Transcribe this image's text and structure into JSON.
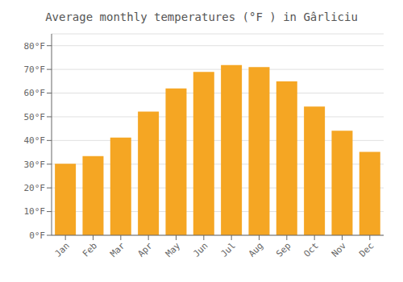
{
  "chart_data": {
    "type": "bar",
    "title": "Average monthly temperatures (°F ) in Gârliciu",
    "categories": [
      "Jan",
      "Feb",
      "Mar",
      "Apr",
      "May",
      "Jun",
      "Jul",
      "Aug",
      "Sep",
      "Oct",
      "Nov",
      "Dec"
    ],
    "values": [
      30.2,
      33.4,
      41.2,
      52.2,
      62.0,
      68.9,
      71.8,
      71.0,
      64.9,
      54.3,
      44.1,
      35.2
    ],
    "color": "#F5A623",
    "ylim": [
      0,
      85
    ],
    "yticks": [
      {
        "value": 0,
        "label": "0°F"
      },
      {
        "value": 10,
        "label": "10°F"
      },
      {
        "value": 20,
        "label": "20°F"
      },
      {
        "value": 30,
        "label": "30°F"
      },
      {
        "value": 40,
        "label": "40°F"
      },
      {
        "value": 50,
        "label": "50°F"
      },
      {
        "value": 60,
        "label": "60°F"
      },
      {
        "value": 70,
        "label": "70°F"
      },
      {
        "value": 80,
        "label": "80°F"
      }
    ],
    "grid": true
  }
}
